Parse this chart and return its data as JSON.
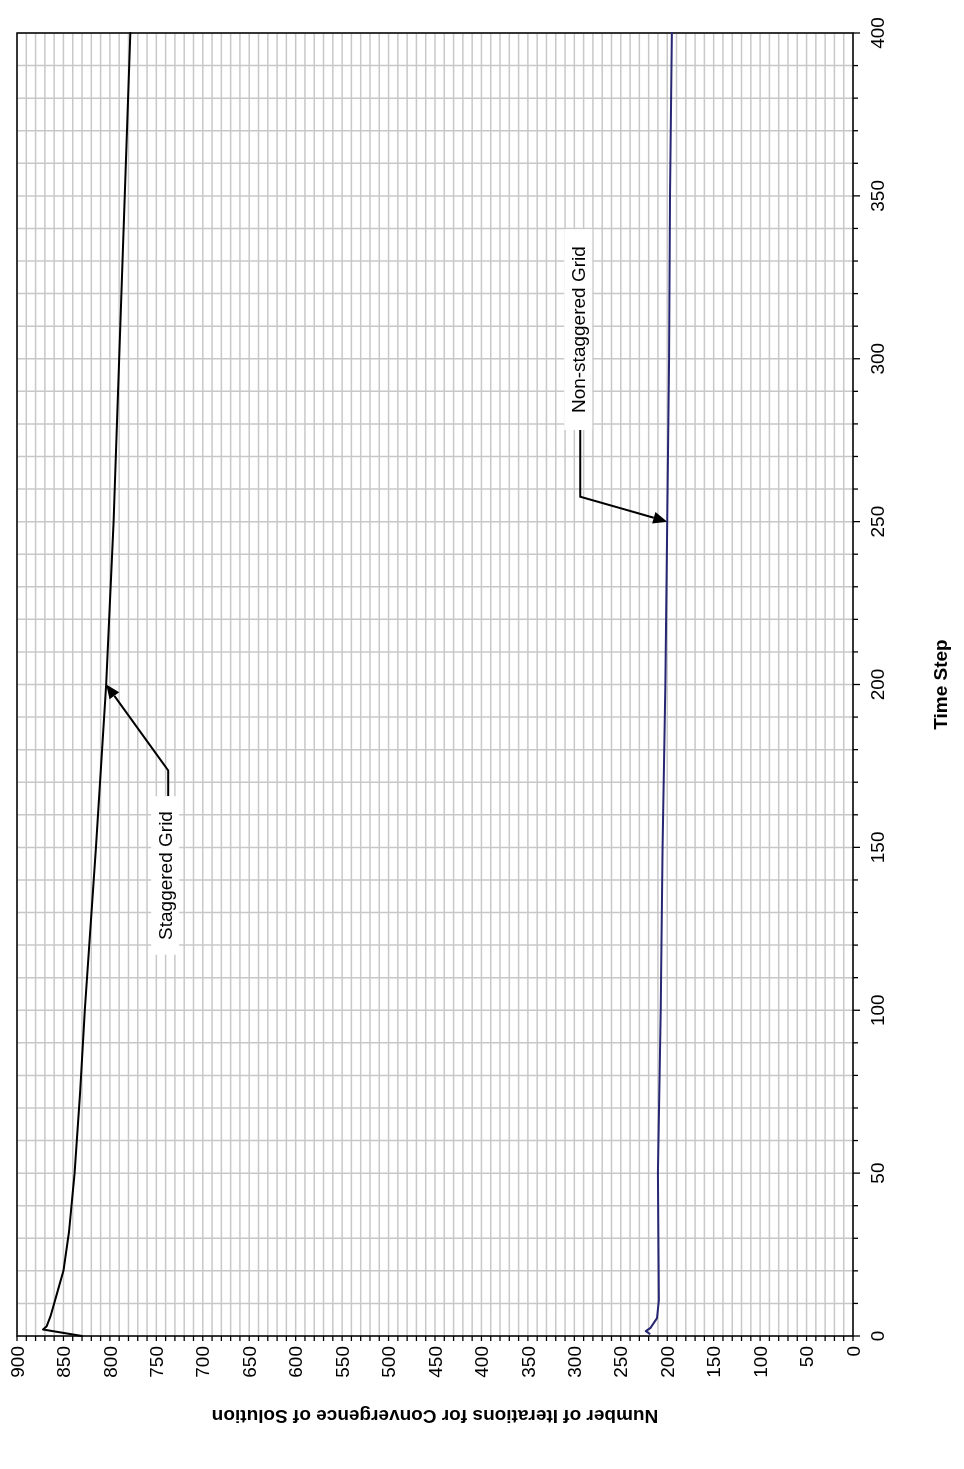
{
  "chart_data": {
    "type": "line",
    "xlabel": "Number of Iterations for Convergence of Solution",
    "ylabel": "Time Step",
    "series": [
      {
        "color": "#000000",
        "x": [
          830,
          872,
          868,
          864,
          860,
          856,
          850,
          844,
          838,
          832,
          827,
          815,
          804,
          796,
          790,
          784,
          778
        ],
        "values": [
          0,
          2,
          3,
          6,
          10,
          14,
          20,
          32,
          50,
          75,
          100,
          150,
          200,
          250,
          300,
          350,
          400
        ]
      },
      {
        "color": "#262673",
        "x": [
          219,
          223,
          218,
          211,
          209,
          210,
          207,
          205,
          202,
          200,
          198,
          197,
          195
        ],
        "values": [
          0.7,
          1.5,
          2.5,
          5.5,
          11,
          50,
          100,
          150,
          200,
          250,
          300,
          350,
          400
        ]
      }
    ],
    "xlim": [
      900,
      0
    ],
    "ylim": [
      0,
      400
    ],
    "yticks": [
      0,
      {
        "value": 10,
        "label": null
      },
      {
        "value": 20,
        "label": null
      },
      {
        "value": 30,
        "label": null
      },
      {
        "value": 40,
        "label": null
      },
      50,
      {
        "value": 60,
        "label": null
      },
      {
        "value": 70,
        "label": null
      },
      {
        "value": 80,
        "label": null
      },
      {
        "value": 90,
        "label": null
      },
      100,
      {
        "value": 110,
        "label": null
      },
      {
        "value": 120,
        "label": null
      },
      {
        "value": 130,
        "label": null
      },
      {
        "value": 140,
        "label": null
      },
      150,
      {
        "value": 160,
        "label": null
      },
      {
        "value": 170,
        "label": null
      },
      {
        "value": 180,
        "label": null
      },
      {
        "value": 190,
        "label": null
      },
      200,
      {
        "value": 210,
        "label": null
      },
      {
        "value": 220,
        "label": null
      },
      {
        "value": 230,
        "label": null
      },
      {
        "value": 240,
        "label": null
      },
      250,
      {
        "value": 260,
        "label": null
      },
      {
        "value": 270,
        "label": null
      },
      {
        "value": 280,
        "label": null
      },
      {
        "value": 290,
        "label": null
      },
      300,
      {
        "value": 310,
        "label": null
      },
      {
        "value": 320,
        "label": null
      },
      {
        "value": 330,
        "label": null
      },
      {
        "value": 340,
        "label": null
      },
      350,
      {
        "value": 360,
        "label": null
      },
      {
        "value": 370,
        "label": null
      },
      {
        "value": 380,
        "label": null
      },
      {
        "value": 390,
        "label": null
      },
      400
    ],
    "xticks": [
      0,
      {
        "value": 10,
        "label": null
      },
      {
        "value": 20,
        "label": null
      },
      {
        "value": 30,
        "label": null
      },
      {
        "value": 40,
        "label": null
      },
      50,
      {
        "value": 60,
        "label": null
      },
      {
        "value": 70,
        "label": null
      },
      {
        "value": 80,
        "label": null
      },
      {
        "value": 90,
        "label": null
      },
      100,
      {
        "value": 110,
        "label": null
      },
      {
        "value": 120,
        "label": null
      },
      {
        "value": 130,
        "label": null
      },
      {
        "value": 140,
        "label": null
      },
      150,
      {
        "value": 160,
        "label": null
      },
      {
        "value": 170,
        "label": null
      },
      {
        "value": 180,
        "label": null
      },
      {
        "value": 190,
        "label": null
      },
      200,
      {
        "value": 210,
        "label": null
      },
      {
        "value": 220,
        "label": null
      },
      {
        "value": 230,
        "label": null
      },
      {
        "value": 240,
        "label": null
      },
      250,
      {
        "value": 260,
        "label": null
      },
      {
        "value": 270,
        "label": null
      },
      {
        "value": 280,
        "label": null
      },
      {
        "value": 290,
        "label": null
      },
      300,
      {
        "value": 310,
        "label": null
      },
      {
        "value": 320,
        "label": null
      },
      {
        "value": 330,
        "label": null
      },
      {
        "value": 340,
        "label": null
      },
      350,
      {
        "value": 360,
        "label": null
      },
      {
        "value": 370,
        "label": null
      },
      {
        "value": 380,
        "label": null
      },
      {
        "value": 390,
        "label": null
      },
      400,
      {
        "value": 410,
        "label": null
      },
      {
        "value": 420,
        "label": null
      },
      {
        "value": 430,
        "label": null
      },
      {
        "value": 440,
        "label": null
      },
      450,
      {
        "value": 460,
        "label": null
      },
      {
        "value": 470,
        "label": null
      },
      {
        "value": 480,
        "label": null
      },
      {
        "value": 490,
        "label": null
      },
      500,
      {
        "value": 510,
        "label": null
      },
      {
        "value": 520,
        "label": null
      },
      {
        "value": 530,
        "label": null
      },
      {
        "value": 540,
        "label": null
      },
      550,
      {
        "value": 560,
        "label": null
      },
      {
        "value": 570,
        "label": null
      },
      {
        "value": 580,
        "label": null
      },
      {
        "value": 590,
        "label": null
      },
      600,
      {
        "value": 610,
        "label": null
      },
      {
        "value": 620,
        "label": null
      },
      {
        "value": 630,
        "label": null
      },
      {
        "value": 640,
        "label": null
      },
      650,
      {
        "value": 660,
        "label": null
      },
      {
        "value": 670,
        "label": null
      },
      {
        "value": 680,
        "label": null
      },
      {
        "value": 690,
        "label": null
      },
      700,
      {
        "value": 710,
        "label": null
      },
      {
        "value": 720,
        "label": null
      },
      {
        "value": 730,
        "label": null
      },
      {
        "value": 740,
        "label": null
      },
      750,
      {
        "value": 760,
        "label": null
      },
      {
        "value": 770,
        "label": null
      },
      {
        "value": 780,
        "label": null
      },
      {
        "value": 790,
        "label": null
      },
      800,
      {
        "value": 810,
        "label": null
      },
      {
        "value": 820,
        "label": null
      },
      {
        "value": 830,
        "label": null
      },
      {
        "value": 840,
        "label": null
      },
      850,
      {
        "value": 860,
        "label": null
      },
      {
        "value": 870,
        "label": null
      },
      {
        "value": 880,
        "label": null
      },
      {
        "value": 890,
        "label": null
      },
      900
    ],
    "grid": true,
    "marker": "none",
    "line_style": "solid",
    "annotations": [
      "Staggered Grid",
      "Non-staggered Grid"
    ]
  }
}
